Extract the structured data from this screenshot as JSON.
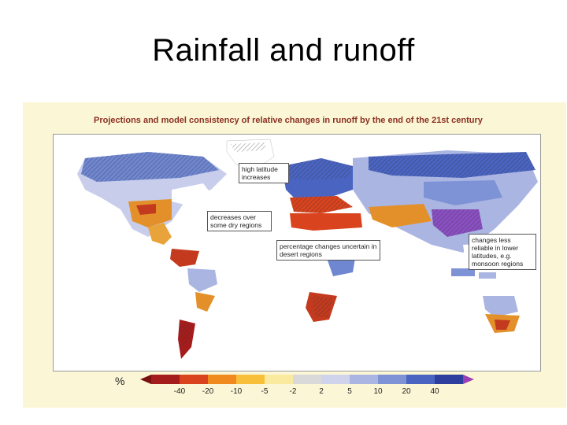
{
  "slide": {
    "title": "Rainfall and runoff"
  },
  "figure": {
    "heading": "Projections and model consistency of relative changes in runoff by the end of the 21st century",
    "callouts": [
      {
        "id": "high-latitude",
        "text": "high latitude increases"
      },
      {
        "id": "dry-regions",
        "text": "decreases over some dry regions"
      },
      {
        "id": "desert",
        "text": "percentage changes uncertain in desert regions"
      },
      {
        "id": "monsoon",
        "text": "changes less reliable in lower latitudes, e.g. monsoon regions"
      }
    ]
  },
  "legend": {
    "unit": "%",
    "ticks": [
      "-40",
      "-20",
      "-10",
      "-5",
      "-2",
      "2",
      "5",
      "10",
      "20",
      "40"
    ],
    "colors": [
      "#a51c1c",
      "#d9431e",
      "#f08a1e",
      "#f7bf3a",
      "#faeaa0",
      "#d9d9d9",
      "#cfd4ec",
      "#aab5e2",
      "#7e92d6",
      "#4a64c2",
      "#2e3e9e"
    ],
    "arrow_left_color": "#7a1010",
    "arrow_right_color": "#9b3fb5"
  }
}
